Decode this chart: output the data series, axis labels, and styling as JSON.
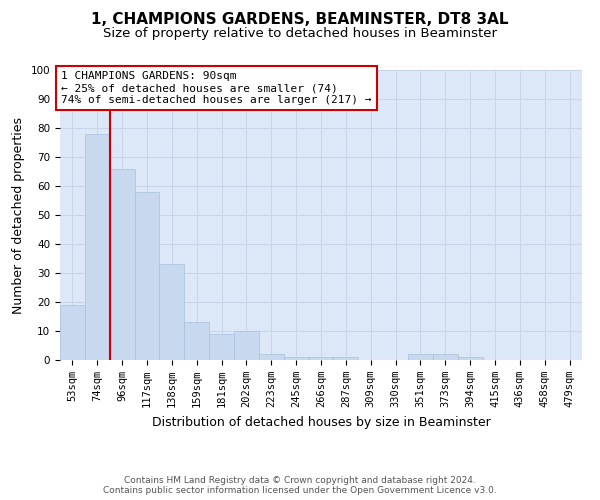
{
  "title": "1, CHAMPIONS GARDENS, BEAMINSTER, DT8 3AL",
  "subtitle": "Size of property relative to detached houses in Beaminster",
  "xlabel": "Distribution of detached houses by size in Beaminster",
  "ylabel": "Number of detached properties",
  "categories": [
    "53sqm",
    "74sqm",
    "96sqm",
    "117sqm",
    "138sqm",
    "159sqm",
    "181sqm",
    "202sqm",
    "223sqm",
    "245sqm",
    "266sqm",
    "287sqm",
    "309sqm",
    "330sqm",
    "351sqm",
    "373sqm",
    "394sqm",
    "415sqm",
    "436sqm",
    "458sqm",
    "479sqm"
  ],
  "values": [
    19,
    78,
    66,
    58,
    33,
    13,
    9,
    10,
    2,
    1,
    1,
    1,
    0,
    0,
    2,
    2,
    1,
    0,
    0,
    0,
    0
  ],
  "bar_color": "#c8d8ee",
  "bar_edge_color": "#a8c0dc",
  "vline_x_index": 1.5,
  "vline_color": "#cc0000",
  "annotation_text": "1 CHAMPIONS GARDENS: 90sqm\n← 25% of detached houses are smaller (74)\n74% of semi-detached houses are larger (217) →",
  "annotation_box_color": "#ffffff",
  "annotation_box_edge": "#cc0000",
  "ylim": [
    0,
    100
  ],
  "yticks": [
    0,
    10,
    20,
    30,
    40,
    50,
    60,
    70,
    80,
    90,
    100
  ],
  "grid_color": "#c8d4e8",
  "background_color": "#dce8f8",
  "footer": "Contains HM Land Registry data © Crown copyright and database right 2024.\nContains public sector information licensed under the Open Government Licence v3.0.",
  "title_fontsize": 11,
  "subtitle_fontsize": 9.5,
  "xlabel_fontsize": 9,
  "ylabel_fontsize": 9,
  "tick_fontsize": 7.5,
  "footer_fontsize": 6.5,
  "annotation_fontsize": 8
}
